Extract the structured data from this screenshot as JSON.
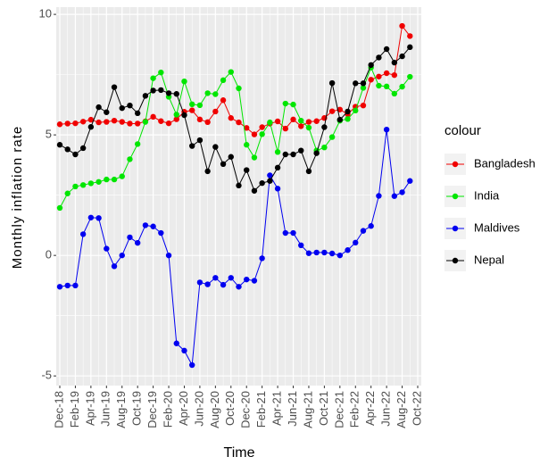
{
  "chart_data": {
    "type": "line",
    "x_label": "Time",
    "y_label": "Monthly inflation rate",
    "legend_title": "colour",
    "legend_position": "right",
    "grid": true,
    "x": [
      "Dec-18",
      "Jan-19",
      "Feb-19",
      "Mar-19",
      "Apr-19",
      "May-19",
      "Jun-19",
      "Jul-19",
      "Aug-19",
      "Sep-19",
      "Oct-19",
      "Nov-19",
      "Dec-19",
      "Jan-20",
      "Feb-20",
      "Mar-20",
      "Apr-20",
      "May-20",
      "Jun-20",
      "Jul-20",
      "Aug-20",
      "Sep-20",
      "Oct-20",
      "Nov-20",
      "Dec-20",
      "Jan-21",
      "Feb-21",
      "Mar-21",
      "Apr-21",
      "May-21",
      "Jun-21",
      "Jul-21",
      "Aug-21",
      "Sep-21",
      "Oct-21",
      "Nov-21",
      "Dec-21",
      "Jan-22",
      "Feb-22",
      "Mar-22",
      "Apr-22",
      "May-22",
      "Jun-22",
      "Jul-22",
      "Aug-22",
      "Sep-22"
    ],
    "xlim": [
      "Dec-18",
      "Oct-22"
    ],
    "xticks": [
      "Dec-18",
      "Feb-19",
      "Apr-19",
      "Jun-19",
      "Aug-19",
      "Oct-19",
      "Dec-19",
      "Feb-20",
      "Apr-20",
      "Jun-20",
      "Aug-20",
      "Oct-20",
      "Dec-20",
      "Feb-21",
      "Apr-21",
      "Jun-21",
      "Aug-21",
      "Oct-21",
      "Dec-21",
      "Feb-22",
      "Apr-22",
      "Jun-22",
      "Aug-22",
      "Oct-22"
    ],
    "ylim": [
      -5.4,
      10.3
    ],
    "yticks": [
      -5,
      0,
      5,
      10
    ],
    "series": [
      {
        "name": "Bangladesh",
        "color": "#f00000",
        "values": [
          5.44,
          5.47,
          5.48,
          5.55,
          5.63,
          5.52,
          5.54,
          5.59,
          5.54,
          5.47,
          5.47,
          5.56,
          5.75,
          5.57,
          5.48,
          5.65,
          5.96,
          6.02,
          5.64,
          5.53,
          5.97,
          6.44,
          5.7,
          5.52,
          5.29,
          5.02,
          5.32,
          5.47,
          5.56,
          5.26,
          5.64,
          5.36,
          5.54,
          5.57,
          5.7,
          5.98,
          6.05,
          5.86,
          6.17,
          6.22,
          7.29,
          7.42,
          7.56,
          7.48,
          9.52,
          9.1
        ]
      },
      {
        "name": "India",
        "color": "#00e600",
        "values": [
          1.97,
          2.57,
          2.86,
          2.92,
          2.99,
          3.05,
          3.15,
          3.15,
          3.28,
          3.99,
          4.62,
          5.54,
          7.35,
          7.59,
          6.58,
          5.84,
          7.22,
          6.27,
          6.23,
          6.73,
          6.69,
          7.27,
          7.61,
          6.93,
          4.59,
          4.06,
          5.03,
          5.52,
          4.29,
          6.3,
          6.26,
          5.59,
          5.3,
          4.35,
          4.48,
          4.91,
          5.59,
          5.66,
          6.01,
          6.95,
          7.79,
          7.04,
          7.01,
          6.71,
          7.0,
          7.41
        ]
      },
      {
        "name": "Maldives",
        "color": "#0000f0",
        "values": [
          -1.3,
          -1.25,
          -1.25,
          0.88,
          1.57,
          1.55,
          0.28,
          -0.45,
          0.0,
          0.75,
          0.52,
          1.25,
          1.2,
          0.93,
          0.0,
          -3.65,
          -3.95,
          -4.55,
          -1.12,
          -1.2,
          -0.93,
          -1.22,
          -0.93,
          -1.3,
          -1.0,
          -1.05,
          -0.12,
          3.32,
          2.77,
          0.93,
          0.93,
          0.42,
          0.09,
          0.12,
          0.12,
          0.08,
          0.0,
          0.22,
          0.53,
          1.02,
          1.22,
          2.47,
          5.22,
          2.46,
          2.62,
          3.09
        ]
      },
      {
        "name": "Nepal",
        "color": "#000000",
        "values": [
          4.59,
          4.4,
          4.19,
          4.45,
          5.33,
          6.15,
          5.94,
          6.98,
          6.11,
          6.22,
          5.9,
          6.62,
          6.84,
          6.86,
          6.73,
          6.7,
          5.82,
          4.54,
          4.78,
          3.49,
          4.5,
          3.79,
          4.09,
          2.9,
          3.54,
          2.68,
          3.0,
          3.09,
          3.64,
          4.19,
          4.19,
          4.35,
          3.49,
          4.24,
          5.32,
          7.15,
          5.63,
          5.97,
          7.14,
          7.14,
          7.9,
          8.21,
          8.56,
          8.0,
          8.26,
          8.64
        ]
      }
    ]
  }
}
